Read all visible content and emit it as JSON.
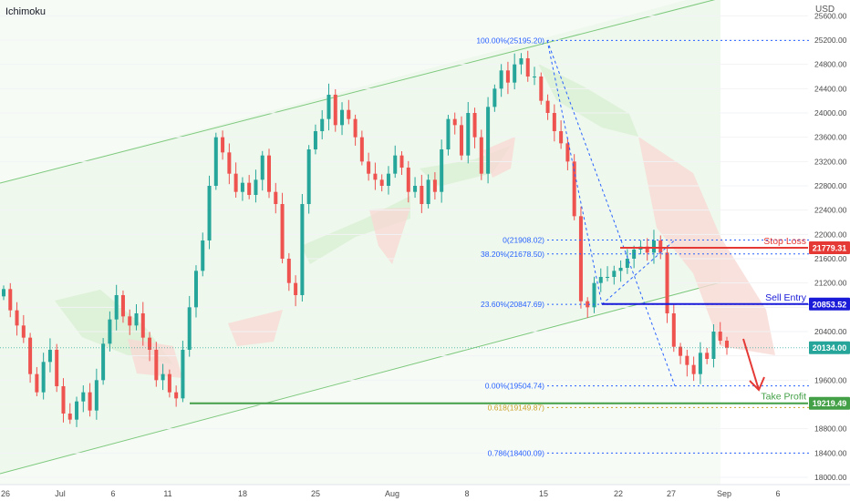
{
  "header": {
    "indicator": "Ichimoku",
    "currency": "USD"
  },
  "colors": {
    "up": "#26a69a",
    "down": "#ef5350",
    "channel": "#7dc97d",
    "channel_fill": "#e8f5e3",
    "cloud_bull": "#d9efd5",
    "cloud_bear": "#f8d9d5",
    "fib": "#2962ff",
    "stop_loss": "#e53935",
    "sell_entry": "#1a1ad9",
    "take_profit": "#43a047",
    "current": "#26a69a",
    "gold": "#c9a227"
  },
  "chart_data": {
    "type": "candlestick",
    "y_axis": {
      "ticks": [
        18000,
        18400,
        18800,
        19200,
        19600,
        20000,
        20400,
        20800,
        21200,
        21600,
        22000,
        22400,
        22800,
        23200,
        23600,
        24000,
        24400,
        24800,
        25200,
        25600
      ],
      "labels": [
        "18000.00",
        "18400.00",
        "18800.00",
        "19200.00",
        "19600.00",
        "20000.00",
        "20400.00",
        "20800.00",
        "21200.00",
        "21600.00",
        "22000.00",
        "22400.00",
        "22800.00",
        "23200.00",
        "23600.00",
        "24000.00",
        "24400.00",
        "24800.00",
        "25200.00",
        "25600.00"
      ],
      "range": [
        17880,
        25860
      ]
    },
    "x_axis": {
      "ticks": [
        "26",
        "Jul",
        "6",
        "11",
        "18",
        "25",
        "Aug",
        "8",
        "15",
        "22",
        "27",
        "Sep",
        "6"
      ]
    },
    "fib_levels": [
      {
        "label": "100.00%(25195.20)",
        "value": 25195.2
      },
      {
        "label": "0(21908.02)",
        "value": 21908.02
      },
      {
        "label": "38.20%(21678.50)",
        "value": 21678.5
      },
      {
        "label": "23.60%(20847.69)",
        "value": 20847.69
      },
      {
        "label": "0.00%(19504.74)",
        "value": 19504.74
      },
      {
        "label": "0.618(19149.87)",
        "value": 19149.87
      },
      {
        "label": "0.786(18400.09)",
        "value": 18400.09
      }
    ],
    "levels": [
      {
        "name": "Stop Loss",
        "value": 21779.31,
        "tag": "21779.31"
      },
      {
        "name": "Sell Entry",
        "value": 20853.52,
        "tag": "20853.52"
      },
      {
        "name": "Take Profit",
        "value": 19219.49,
        "tag": "19219.49"
      }
    ],
    "current_price": {
      "value": 20134.0,
      "tag": "20134.00"
    },
    "closes": [
      21100,
      20750,
      20500,
      20300,
      19700,
      19400,
      19900,
      20100,
      19500,
      19050,
      18950,
      19250,
      19400,
      19100,
      19600,
      20200,
      20600,
      21000,
      20650,
      20500,
      20700,
      20300,
      20100,
      19600,
      19700,
      19400,
      19300,
      20100,
      20800,
      21400,
      21900,
      22800,
      23600,
      23350,
      23000,
      22700,
      22850,
      22650,
      22900,
      23300,
      22700,
      22500,
      21600,
      21200,
      21000,
      22500,
      23400,
      23700,
      23900,
      24300,
      23800,
      24050,
      23900,
      23600,
      23200,
      23000,
      22900,
      22800,
      23000,
      23300,
      23100,
      22700,
      22800,
      22500,
      22900,
      22700,
      23400,
      23900,
      23800,
      23300,
      24000,
      23600,
      23000,
      24100,
      24400,
      24700,
      24500,
      24800,
      24900,
      24600,
      24600,
      24200,
      24000,
      23700,
      23500,
      23200,
      22300,
      20900,
      20800,
      21200,
      21300,
      21300,
      21400,
      21450,
      21600,
      21750,
      21800,
      21700,
      21900,
      21700,
      20700,
      20150,
      20000,
      19850,
      19700,
      20050,
      19950,
      20400,
      20250,
      20134
    ]
  }
}
